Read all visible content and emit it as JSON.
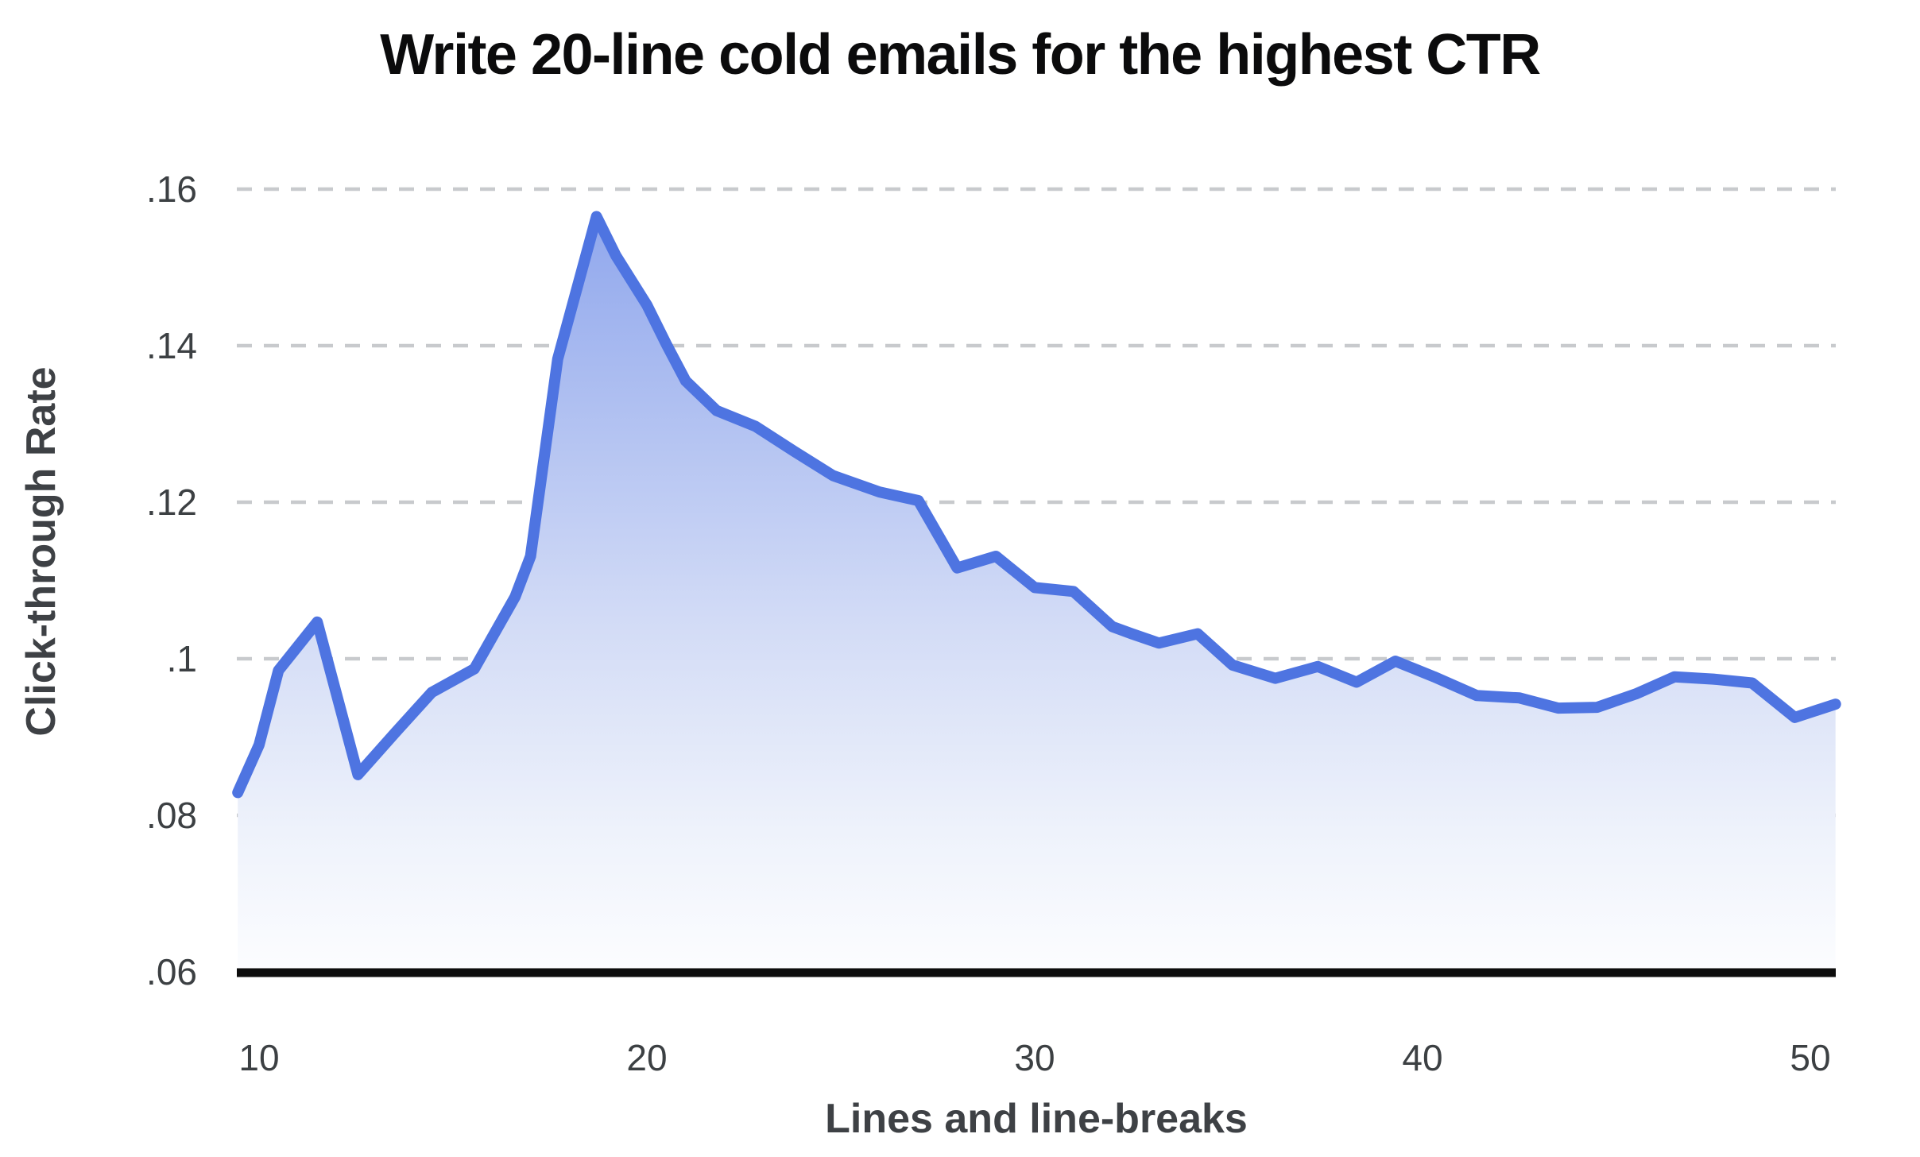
{
  "chart": {
    "title": "Write 20-line cold emails for the highest CTR",
    "x_axis_label": "Lines and line-breaks",
    "y_axis_label": "Click-through Rate"
  },
  "chart_data": {
    "type": "area",
    "title": "Write 20-line cold emails for the highest CTR",
    "xlabel": "Lines and line-breaks",
    "ylabel": "Click-through Rate",
    "x_ticks": [
      10,
      20,
      30,
      40,
      50
    ],
    "y_ticks": [
      {
        "label": ".06",
        "value": 0.06
      },
      {
        "label": ".08",
        "value": 0.08
      },
      {
        "label": ".1",
        "value": 0.1
      },
      {
        "label": ".12",
        "value": 0.12
      },
      {
        "label": ".14",
        "value": 0.14
      },
      {
        "label": ".16",
        "value": 0.16
      }
    ],
    "xlim": [
      9.45,
      50.65
    ],
    "ylim": [
      0.06,
      0.1665
    ],
    "grid": "horizontal-dashed",
    "legend": "none",
    "series": [
      {
        "name": "Click-through Rate",
        "points": [
          [
            9.45,
            0.0829
          ],
          [
            10,
            0.089
          ],
          [
            10.5,
            0.0985
          ],
          [
            11.5,
            0.1047
          ],
          [
            12.55,
            0.0852
          ],
          [
            13.5,
            0.0905
          ],
          [
            14.45,
            0.0957
          ],
          [
            15.55,
            0.0987
          ],
          [
            16.6,
            0.1079
          ],
          [
            17,
            0.1131
          ],
          [
            17.7,
            0.1383
          ],
          [
            18.7,
            0.1565
          ],
          [
            19.2,
            0.1515
          ],
          [
            20,
            0.1452
          ],
          [
            20.5,
            0.1402
          ],
          [
            21,
            0.1355
          ],
          [
            21.8,
            0.1317
          ],
          [
            22.8,
            0.1297
          ],
          [
            23.8,
            0.1265
          ],
          [
            24.8,
            0.1234
          ],
          [
            26,
            0.1213
          ],
          [
            27,
            0.1202
          ],
          [
            28,
            0.1116
          ],
          [
            29,
            0.1131
          ],
          [
            30,
            0.1091
          ],
          [
            31,
            0.1086
          ],
          [
            32,
            0.1041
          ],
          [
            32.5,
            0.1032
          ],
          [
            33.2,
            0.102
          ],
          [
            34.2,
            0.1032
          ],
          [
            35.1,
            0.0992
          ],
          [
            36.2,
            0.0975
          ],
          [
            37.3,
            0.099
          ],
          [
            38.3,
            0.097
          ],
          [
            39.3,
            0.0997
          ],
          [
            40.3,
            0.0977
          ],
          [
            41.4,
            0.0953
          ],
          [
            42.5,
            0.095
          ],
          [
            43.5,
            0.0937
          ],
          [
            44.5,
            0.0938
          ],
          [
            45.5,
            0.0955
          ],
          [
            46.5,
            0.0977
          ],
          [
            47.5,
            0.0974
          ],
          [
            48.5,
            0.0969
          ],
          [
            49.6,
            0.0925
          ],
          [
            50.65,
            0.0942
          ]
        ]
      }
    ],
    "colors": {
      "line": "#4e74e1",
      "area_top": "#8ca4ec",
      "area_mid": "#dde4f8",
      "area_bottom": "#fcfdff",
      "gridline": "#c8cacd",
      "axis_line": "#0d0d0d",
      "tick_text": "#3c4043",
      "title_text": "#0b0b0c"
    }
  }
}
